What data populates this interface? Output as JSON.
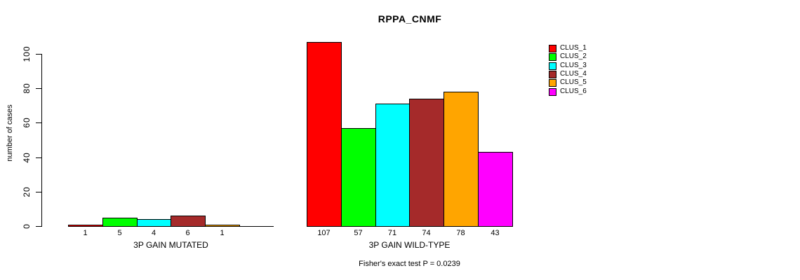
{
  "title": "RPPA_CNMF",
  "footnote": "Fisher's exact test P = 0.0239",
  "y_axis": {
    "label": "number of cases",
    "ticks": [
      "0",
      "20",
      "40",
      "60",
      "80",
      "100"
    ]
  },
  "legend": [
    {
      "label": "CLUS_1",
      "color": "#FF0000"
    },
    {
      "label": "CLUS_2",
      "color": "#00FF00"
    },
    {
      "label": "CLUS_3",
      "color": "#00FFFF"
    },
    {
      "label": "CLUS_4",
      "color": "#A52A2A"
    },
    {
      "label": "CLUS_5",
      "color": "#FFA500"
    },
    {
      "label": "CLUS_6",
      "color": "#FF00FF"
    }
  ],
  "chart_data": {
    "type": "bar",
    "title": "RPPA_CNMF",
    "ylabel": "number of cases",
    "ylim": [
      0,
      107
    ],
    "yticks": [
      0,
      20,
      40,
      60,
      80,
      100
    ],
    "grid": false,
    "legend_position": "right",
    "clusters": [
      "CLUS_1",
      "CLUS_2",
      "CLUS_3",
      "CLUS_4",
      "CLUS_5",
      "CLUS_6"
    ],
    "colors": [
      "#FF0000",
      "#00FF00",
      "#00FFFF",
      "#A52A2A",
      "#FFA500",
      "#FF00FF"
    ],
    "groups": [
      {
        "label": "3P GAIN MUTATED",
        "values": [
          1,
          5,
          4,
          6,
          1,
          0
        ],
        "bar_labels": [
          "1",
          "5",
          "4",
          "6",
          "1",
          ""
        ]
      },
      {
        "label": "3P GAIN WILD-TYPE",
        "values": [
          107,
          57,
          71,
          74,
          78,
          43
        ],
        "bar_labels": [
          "107",
          "57",
          "71",
          "74",
          "78",
          "43"
        ]
      }
    ],
    "annotation": "Fisher's exact test P = 0.0239"
  }
}
